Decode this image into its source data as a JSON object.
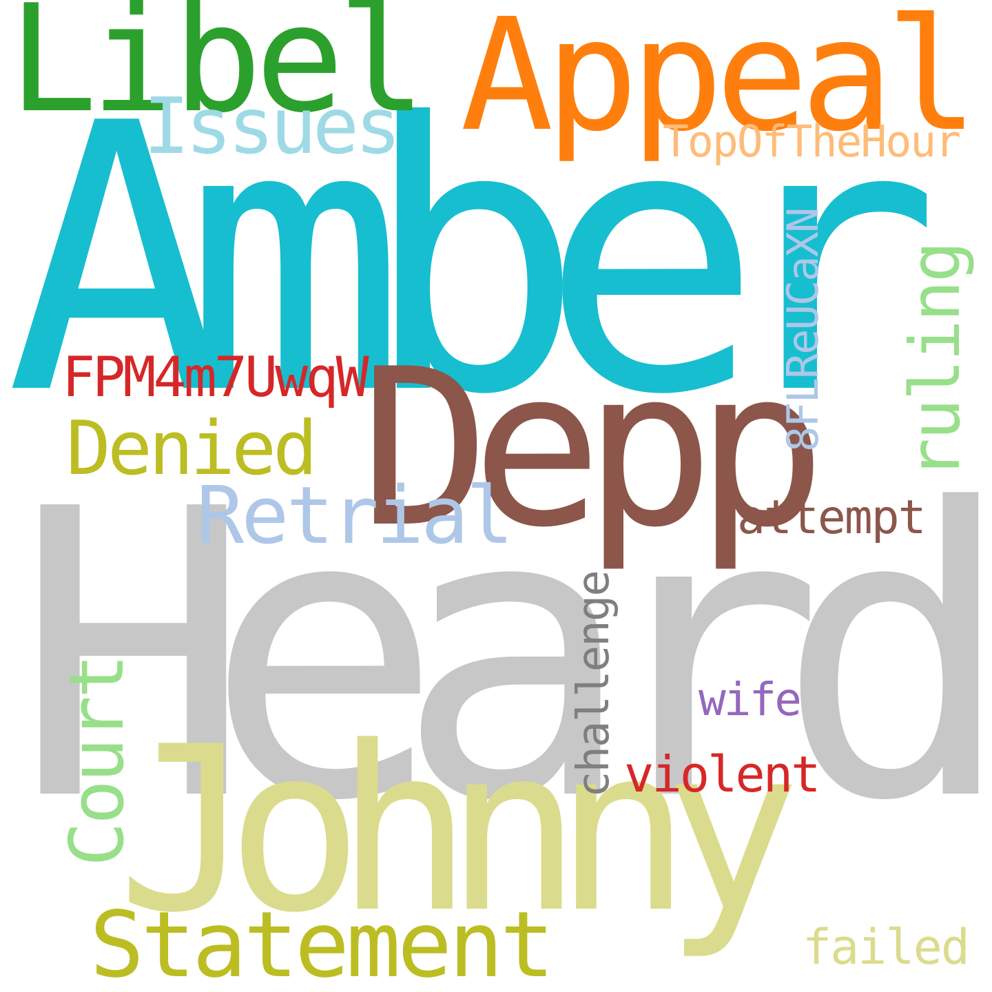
{
  "cloud": {
    "background": "#ffffff",
    "words": {
      "amber": {
        "text": "Amber",
        "color": "#17becf"
      },
      "heard": {
        "text": "Heard",
        "color": "#c7c7c7"
      },
      "johnny": {
        "text": "Johnny",
        "color": "#dbdb8d"
      },
      "depp": {
        "text": "Depp",
        "color": "#8c564b"
      },
      "appeal": {
        "text": "Appeal",
        "color": "#ff7f0e"
      },
      "libel": {
        "text": "Libel",
        "color": "#2ca02c"
      },
      "issues": {
        "text": "Issues",
        "color": "#9edae5"
      },
      "topofthehour": {
        "text": "TopOfTheHour",
        "color": "#ffbb78"
      },
      "fpm": {
        "text": "FPM4m7UwqW",
        "color": "#d62728"
      },
      "denied": {
        "text": "Denied",
        "color": "#bcbd22"
      },
      "retrial": {
        "text": "Retrial",
        "color": "#aec7e8"
      },
      "attempt": {
        "text": "attempt",
        "color": "#8c564b"
      },
      "wife": {
        "text": "wife",
        "color": "#9467bd"
      },
      "violent": {
        "text": "violent",
        "color": "#d62728"
      },
      "statement": {
        "text": "Statement",
        "color": "#bcbd22"
      },
      "failed": {
        "text": "failed",
        "color": "#dbdb8d"
      },
      "ruling": {
        "text": "ruling",
        "color": "#98df8a"
      },
      "code8fl": {
        "text": "8FLReUCaXN",
        "color": "#aec7e8"
      },
      "challenge": {
        "text": "challenge",
        "color": "#7f7f7f"
      },
      "court": {
        "text": "Court",
        "color": "#98df8a"
      }
    }
  }
}
